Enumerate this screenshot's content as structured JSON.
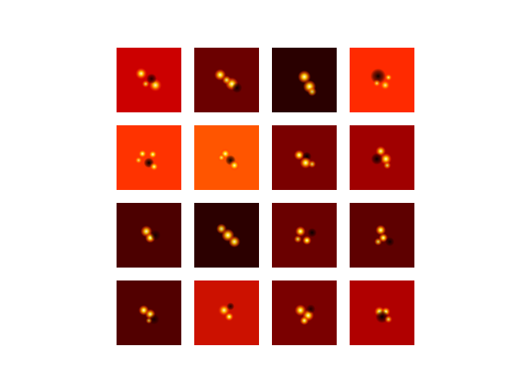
{
  "chart_data": {
    "type": "heatmap",
    "title": "",
    "grid": {
      "rows": 4,
      "cols": 4,
      "axes_visible": false,
      "colormap": "hot"
    },
    "panels": [
      {
        "row": 1,
        "col": 1,
        "background": "#cc0000",
        "blobs": [
          [
            -0.12,
            -0.1,
            0.09,
            0.9
          ],
          [
            0.1,
            0.08,
            0.1,
            0.8
          ],
          [
            0.04,
            -0.02,
            0.08,
            -0.7
          ],
          [
            -0.05,
            0.06,
            0.06,
            0.6
          ]
        ]
      },
      {
        "row": 1,
        "col": 2,
        "background": "#6b0000",
        "blobs": [
          [
            -0.1,
            -0.08,
            0.09,
            1.0
          ],
          [
            0.08,
            0.06,
            0.1,
            0.9
          ],
          [
            0.16,
            0.12,
            0.08,
            -0.7
          ],
          [
            0.0,
            0.0,
            0.07,
            0.7
          ]
        ]
      },
      {
        "row": 1,
        "col": 3,
        "background": "#2a0000",
        "blobs": [
          [
            0.0,
            -0.05,
            0.1,
            0.9
          ],
          [
            0.08,
            0.1,
            0.1,
            1.0
          ],
          [
            0.12,
            0.18,
            0.07,
            0.6
          ]
        ]
      },
      {
        "row": 1,
        "col": 4,
        "background": "#ff2a00",
        "blobs": [
          [
            -0.06,
            -0.06,
            0.12,
            -0.8
          ],
          [
            0.05,
            0.08,
            0.08,
            0.7
          ],
          [
            0.1,
            -0.04,
            0.06,
            0.7
          ],
          [
            -0.08,
            0.05,
            0.06,
            0.6
          ]
        ]
      },
      {
        "row": 2,
        "col": 1,
        "background": "#ff3300",
        "blobs": [
          [
            -0.1,
            -0.06,
            0.07,
            0.9
          ],
          [
            0.06,
            -0.05,
            0.07,
            1.0
          ],
          [
            0.0,
            0.08,
            0.08,
            -0.9
          ],
          [
            0.08,
            0.14,
            0.07,
            0.8
          ],
          [
            -0.16,
            0.04,
            0.06,
            0.6
          ]
        ]
      },
      {
        "row": 2,
        "col": 2,
        "background": "#ff5500",
        "blobs": [
          [
            -0.02,
            -0.06,
            0.08,
            1.0
          ],
          [
            0.06,
            0.04,
            0.08,
            -0.8
          ],
          [
            0.12,
            0.12,
            0.08,
            0.9
          ],
          [
            -0.08,
            0.0,
            0.06,
            0.6
          ]
        ]
      },
      {
        "row": 2,
        "col": 3,
        "background": "#7a0000",
        "blobs": [
          [
            -0.08,
            -0.04,
            0.08,
            0.9
          ],
          [
            0.04,
            -0.02,
            0.07,
            -0.9
          ],
          [
            0.02,
            0.08,
            0.09,
            1.0
          ],
          [
            0.12,
            0.1,
            0.06,
            0.6
          ]
        ]
      },
      {
        "row": 2,
        "col": 4,
        "background": "#a00000",
        "blobs": [
          [
            -0.02,
            -0.1,
            0.08,
            0.8
          ],
          [
            0.06,
            0.02,
            0.09,
            0.9
          ],
          [
            -0.08,
            0.02,
            0.09,
            -0.8
          ],
          [
            0.08,
            0.12,
            0.06,
            0.6
          ]
        ]
      },
      {
        "row": 3,
        "col": 1,
        "background": "#4c0000",
        "blobs": [
          [
            -0.04,
            -0.06,
            0.09,
            0.8
          ],
          [
            0.02,
            0.04,
            0.08,
            1.0
          ],
          [
            0.1,
            0.0,
            0.08,
            -0.6
          ]
        ]
      },
      {
        "row": 3,
        "col": 2,
        "background": "#2c0000",
        "blobs": [
          [
            -0.08,
            -0.1,
            0.08,
            0.7
          ],
          [
            0.02,
            0.0,
            0.1,
            1.0
          ],
          [
            0.12,
            0.1,
            0.09,
            0.8
          ]
        ]
      },
      {
        "row": 3,
        "col": 3,
        "background": "#6a0000",
        "blobs": [
          [
            -0.06,
            -0.06,
            0.08,
            0.9
          ],
          [
            0.04,
            0.08,
            0.07,
            1.0
          ],
          [
            0.12,
            -0.04,
            0.07,
            -0.8
          ],
          [
            -0.1,
            0.06,
            0.06,
            0.6
          ]
        ]
      },
      {
        "row": 3,
        "col": 4,
        "background": "#5e0000",
        "blobs": [
          [
            -0.02,
            -0.08,
            0.08,
            0.9
          ],
          [
            0.02,
            0.04,
            0.07,
            1.0
          ],
          [
            0.12,
            0.1,
            0.07,
            -0.7
          ],
          [
            -0.06,
            0.1,
            0.06,
            0.6
          ]
        ]
      },
      {
        "row": 4,
        "col": 1,
        "background": "#520000",
        "blobs": [
          [
            -0.08,
            -0.04,
            0.08,
            0.9
          ],
          [
            0.02,
            0.02,
            0.08,
            0.8
          ],
          [
            0.08,
            0.1,
            0.08,
            -0.6
          ],
          [
            0.0,
            0.12,
            0.05,
            0.5
          ]
        ]
      },
      {
        "row": 4,
        "col": 2,
        "background": "#cc1100",
        "blobs": [
          [
            -0.04,
            -0.04,
            0.09,
            0.8
          ],
          [
            0.04,
            0.06,
            0.07,
            0.9
          ],
          [
            0.06,
            -0.1,
            0.06,
            -0.7
          ]
        ]
      },
      {
        "row": 4,
        "col": 3,
        "background": "#7a0000",
        "blobs": [
          [
            -0.06,
            -0.04,
            0.09,
            1.0
          ],
          [
            0.06,
            0.04,
            0.09,
            0.9
          ],
          [
            0.0,
            0.12,
            0.07,
            0.8
          ],
          [
            0.1,
            -0.06,
            0.07,
            -0.6
          ]
        ]
      },
      {
        "row": 4,
        "col": 4,
        "background": "#b00000",
        "blobs": [
          [
            -0.04,
            -0.02,
            0.08,
            0.9
          ],
          [
            0.06,
            -0.02,
            0.07,
            0.8
          ],
          [
            0.0,
            0.06,
            0.1,
            -0.8
          ],
          [
            0.1,
            0.1,
            0.06,
            0.6
          ]
        ]
      }
    ]
  }
}
